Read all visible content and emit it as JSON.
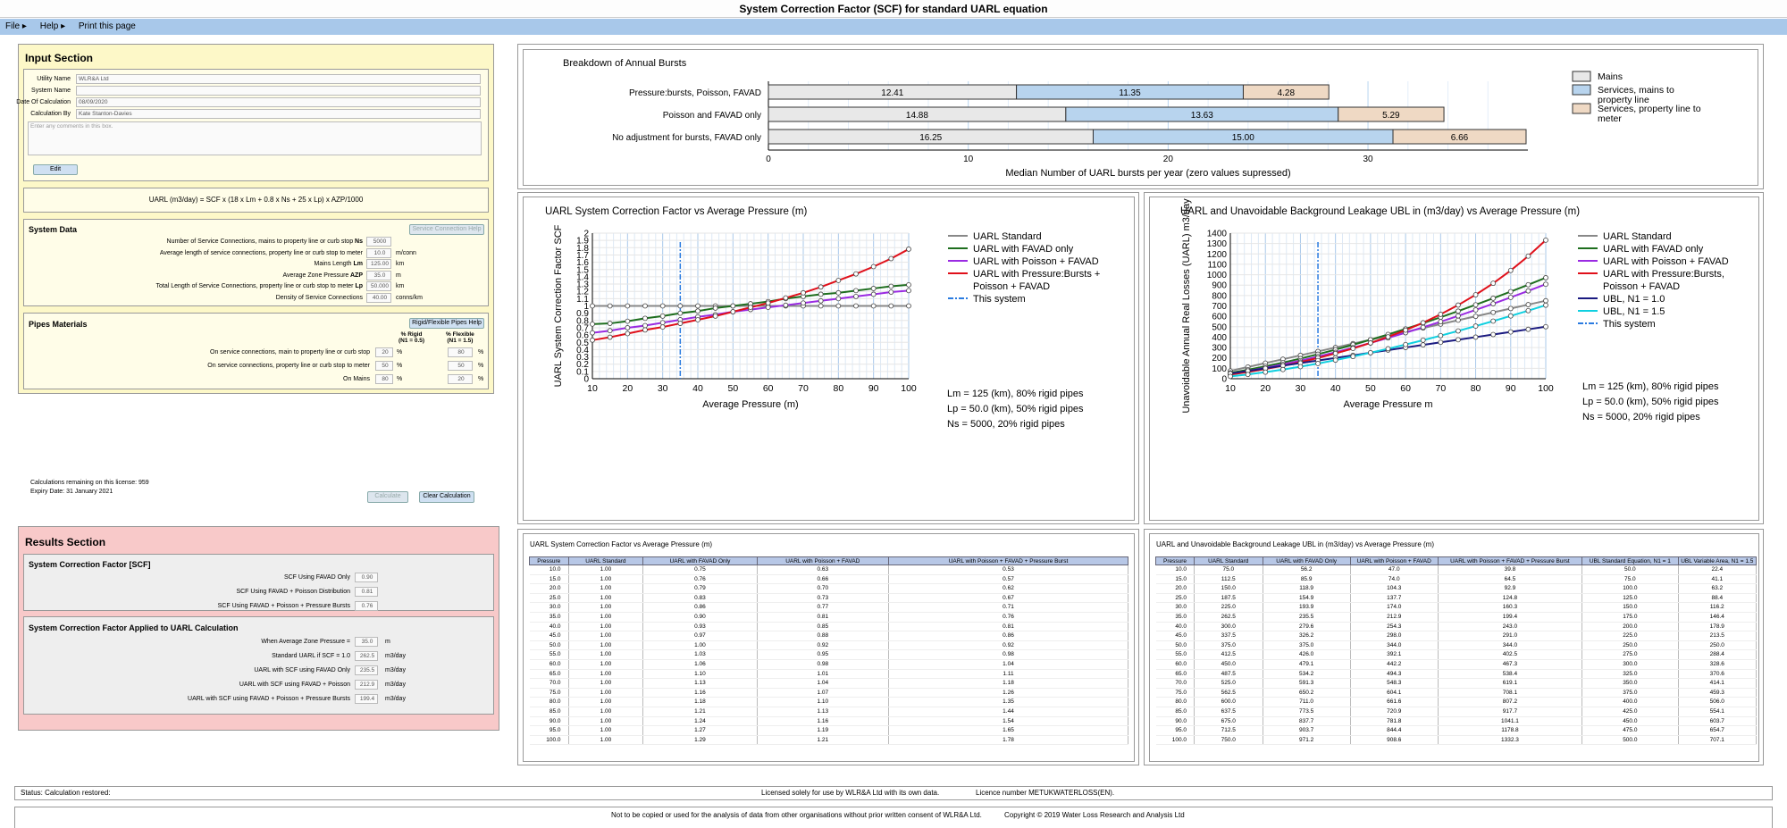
{
  "app": {
    "title": "System Correction Factor (SCF) for standard UARL equation"
  },
  "menu": {
    "file": "File",
    "help": "Help",
    "print": "Print this page"
  },
  "input": {
    "title": "Input Section",
    "utility_label": "Utility Name",
    "utility_value": "WLR&A Ltd",
    "system_label": "System Name",
    "system_value": "",
    "date_label": "Date Of Calculation",
    "date_value": "08/09/2020",
    "calcby_label": "Calculation By",
    "calcby_value": "Kate Stanton-Davies",
    "comments_placeholder": "Enter any comments in this box.",
    "edit": "Edit"
  },
  "formula": "UARL (m3/day) = SCF x (18 x Lm + 0.8 x Ns + 25 x Lp) x AZP/1000",
  "system": {
    "title": "System Data",
    "help": "Service Connection Help",
    "rows": [
      {
        "label": "Number of Service Connections, mains to property line or curb stop",
        "sym": "Ns",
        "value": "5000",
        "unit": ""
      },
      {
        "label": "Average length of service connections, property line or curb stop to meter",
        "sym": "",
        "value": "10.0",
        "unit": "m/conn"
      },
      {
        "label": "Mains Length",
        "sym": "Lm",
        "value": "125.00",
        "unit": "km"
      },
      {
        "label": "Average Zone Pressure",
        "sym": "AZP",
        "value": "35.0",
        "unit": "m"
      },
      {
        "label": "Total Length of Service Connections, property line or curb stop to meter",
        "sym": "Lp",
        "value": "50.000",
        "unit": "km"
      },
      {
        "label": "Density of Service Connections",
        "sym": "",
        "value": "40.00",
        "unit": "conns/km"
      }
    ]
  },
  "pipes": {
    "title": "Pipes Materials",
    "help": "Rigid/Flexible Pipes Help",
    "rigid_head": "% Rigid",
    "rigid_sub": "(N1 = 0.5)",
    "flex_head": "% Flexible",
    "flex_sub": "(N1 = 1.5)",
    "rows": [
      {
        "label": "On service connections, main to property line or curb stop",
        "rigid": "20",
        "flex": "80",
        "unit": "%"
      },
      {
        "label": "On service connections, property line or curb stop to meter",
        "rigid": "50",
        "flex": "50",
        "unit": "%"
      },
      {
        "label": "On Mains",
        "rigid": "80",
        "flex": "20",
        "unit": "%"
      }
    ]
  },
  "license": {
    "remaining": "Calculations remaining on this license: 959",
    "expiry": "Expiry Date: 31 January 2021",
    "calculate": "Calculate",
    "clear": "Clear Calculation"
  },
  "results": {
    "title": "Results Section",
    "scf_title": "System Correction Factor [SCF]",
    "scf_rows": [
      {
        "label": "SCF Using FAVAD Only",
        "value": "0.90"
      },
      {
        "label": "SCF Using FAVAD + Poisson Distribution",
        "value": "0.81"
      },
      {
        "label": "SCF Using FAVAD + Poisson + Pressure Bursts",
        "value": "0.76"
      }
    ],
    "applied_title": "System Correction Factor Applied to UARL Calculation",
    "applied_rows": [
      {
        "label": "When Average Zone Pressure =",
        "value": "35.0",
        "unit": "m"
      },
      {
        "label": "Standard UARL if SCF = 1.0",
        "value": "262.5",
        "unit": "m3/day"
      },
      {
        "label": "UARL with SCF using FAVAD Only",
        "value": "235.5",
        "unit": "m3/day"
      },
      {
        "label": "UARL with SCF using FAVAD + Poisson",
        "value": "212.9",
        "unit": "m3/day"
      },
      {
        "label": "UARL with SCF using FAVAD + Poisson + Pressure Bursts",
        "value": "199.4",
        "unit": "m3/day"
      }
    ]
  },
  "status": {
    "text": "Status: Calculation restored:",
    "licensed": "Licensed solely for use by WLR&A Ltd with its own data.",
    "licnum": "Licence number METUKWATERLOSS(EN).",
    "footer": "Not to be copied or used for the analysis of data from other organisations without prior written consent of WLR&A Ltd.",
    "copyright": "Copyright © 2019 Water Loss Research and Analysis Ltd"
  },
  "chart_data": [
    {
      "type": "bar",
      "title": "Breakdown of Annual Bursts",
      "xlabel": "Median Number of UARL bursts per year (zero values supressed)",
      "xlim": [
        0,
        38
      ],
      "xticks": [
        0,
        10,
        20,
        30
      ],
      "categories": [
        "Pressure:bursts, Poisson, FAVAD",
        "Poisson and FAVAD only",
        "No adjustment for bursts, FAVAD only"
      ],
      "series": [
        {
          "name": "Mains",
          "color": "#e8e8e8",
          "values": [
            12.41,
            14.88,
            16.25
          ]
        },
        {
          "name": "Services, mains to property line",
          "color": "#b8d4ee",
          "values": [
            11.35,
            13.63,
            15.0
          ]
        },
        {
          "name": "Services, property line to meter",
          "color": "#efd9c4",
          "values": [
            4.28,
            5.29,
            6.66
          ]
        }
      ],
      "legend": "right"
    },
    {
      "type": "line",
      "title": "UARL System Correction Factor vs Average Pressure (m)",
      "xlabel": "Average Pressure (m)",
      "ylabel": "UARL System Correction Factor SCF",
      "xlim": [
        10,
        100
      ],
      "ylim": [
        0,
        2
      ],
      "x": [
        10,
        15,
        20,
        25,
        30,
        35,
        40,
        45,
        50,
        55,
        60,
        65,
        70,
        75,
        80,
        85,
        90,
        95,
        100
      ],
      "series": [
        {
          "name": "UARL Standard",
          "color": "#888888",
          "values": [
            1,
            1,
            1,
            1,
            1,
            1,
            1,
            1,
            1,
            1,
            1,
            1,
            1,
            1,
            1,
            1,
            1,
            1,
            1
          ]
        },
        {
          "name": "UARL with FAVAD only",
          "color": "#1e6e1e",
          "values": [
            0.75,
            0.76,
            0.79,
            0.83,
            0.86,
            0.9,
            0.93,
            0.97,
            1.0,
            1.03,
            1.06,
            1.1,
            1.13,
            1.16,
            1.18,
            1.21,
            1.24,
            1.27,
            1.29
          ]
        },
        {
          "name": "UARL with Poisson + FAVAD",
          "color": "#9a2be2",
          "values": [
            0.63,
            0.66,
            0.7,
            0.73,
            0.77,
            0.81,
            0.85,
            0.88,
            0.92,
            0.95,
            0.98,
            1.01,
            1.04,
            1.07,
            1.1,
            1.13,
            1.16,
            1.19,
            1.21
          ]
        },
        {
          "name": "UARL with Pressure:Bursts + Poisson + FAVAD",
          "color": "#e0101a",
          "values": [
            0.53,
            0.57,
            0.62,
            0.67,
            0.71,
            0.76,
            0.81,
            0.86,
            0.92,
            0.98,
            1.04,
            1.11,
            1.18,
            1.26,
            1.35,
            1.44,
            1.54,
            1.65,
            1.78
          ]
        }
      ],
      "system_line_name": "This system",
      "system_x": 35,
      "notes": [
        "Lm = 125 (km), 80% rigid pipes",
        "Lp = 50.0 (km), 50% rigid pipes",
        "Ns = 5000, 20% rigid pipes"
      ]
    },
    {
      "type": "line",
      "title": "UARL and Unavoidable Background Leakage UBL in (m3/day) vs Average Pressure (m)",
      "xlabel": "Average Pressure m",
      "ylabel": "Unavoidable Annual Real Losses (UARL) m3/day",
      "xlim": [
        10,
        100
      ],
      "ylim": [
        0,
        1400
      ],
      "x": [
        10,
        15,
        20,
        25,
        30,
        35,
        40,
        45,
        50,
        55,
        60,
        65,
        70,
        75,
        80,
        85,
        90,
        95,
        100
      ],
      "series": [
        {
          "name": "UARL Standard",
          "color": "#888888",
          "values": [
            75.0,
            112.5,
            150.0,
            187.5,
            225.0,
            262.5,
            300.0,
            337.5,
            375.0,
            412.5,
            450.0,
            487.5,
            525.0,
            562.5,
            600.0,
            637.5,
            675.0,
            712.5,
            750.0
          ]
        },
        {
          "name": "UARL with FAVAD only",
          "color": "#1e6e1e",
          "values": [
            56.2,
            85.9,
            118.9,
            154.9,
            193.9,
            235.5,
            279.6,
            326.2,
            375.0,
            426.0,
            479.1,
            534.2,
            591.3,
            650.2,
            711.0,
            773.5,
            837.7,
            903.7,
            971.2
          ]
        },
        {
          "name": "UARL with Poisson + FAVAD",
          "color": "#9a2be2",
          "values": [
            47.0,
            74.0,
            104.3,
            137.7,
            174.0,
            212.9,
            254.3,
            298.0,
            344.0,
            392.1,
            442.2,
            494.3,
            548.3,
            604.1,
            661.6,
            720.9,
            781.8,
            844.4,
            908.6
          ]
        },
        {
          "name": "UARL with Pressure:Bursts, Poisson + FAVAD",
          "color": "#e0101a",
          "values": [
            39.8,
            64.5,
            92.9,
            124.8,
            160.3,
            199.4,
            243.0,
            291.0,
            344.0,
            402.5,
            467.3,
            538.4,
            619.1,
            708.1,
            807.2,
            917.7,
            1041.1,
            1178.8,
            1332.3
          ]
        },
        {
          "name": "UBL, N1 = 1.0",
          "color": "#1a1a80",
          "values": [
            50.0,
            75.0,
            100.0,
            125.0,
            150.0,
            175.0,
            200.0,
            225.0,
            250.0,
            275.0,
            300.0,
            325.0,
            350.0,
            375.0,
            400.0,
            425.0,
            450.0,
            475.0,
            500.0
          ]
        },
        {
          "name": "UBL, N1 = 1.5",
          "color": "#10d0e0",
          "values": [
            22.4,
            41.1,
            63.2,
            88.4,
            116.2,
            146.4,
            178.9,
            213.5,
            250.0,
            288.4,
            328.6,
            370.6,
            414.1,
            459.3,
            506.0,
            554.1,
            603.7,
            654.7,
            707.1
          ]
        }
      ],
      "system_line_name": "This system",
      "system_x": 35,
      "notes": [
        "Lm = 125 (km), 80% rigid pipes",
        "Lp = 50.0 (km), 50% rigid pipes",
        "Ns = 5000, 20% rigid pipes"
      ]
    }
  ],
  "table1": {
    "title": "UARL System Correction Factor vs Average Pressure (m)",
    "headers": [
      "Pressure",
      "UARL Standard",
      "UARL with FAVAD Only",
      "UARL with Poisson + FAVAD",
      "UARL with Poisson + FAVAD + Pressure Burst"
    ],
    "rows": [
      [
        "10.0",
        "1.00",
        "0.75",
        "0.63",
        "0.53"
      ],
      [
        "15.0",
        "1.00",
        "0.76",
        "0.66",
        "0.57"
      ],
      [
        "20.0",
        "1.00",
        "0.79",
        "0.70",
        "0.62"
      ],
      [
        "25.0",
        "1.00",
        "0.83",
        "0.73",
        "0.67"
      ],
      [
        "30.0",
        "1.00",
        "0.86",
        "0.77",
        "0.71"
      ],
      [
        "35.0",
        "1.00",
        "0.90",
        "0.81",
        "0.76"
      ],
      [
        "40.0",
        "1.00",
        "0.93",
        "0.85",
        "0.81"
      ],
      [
        "45.0",
        "1.00",
        "0.97",
        "0.88",
        "0.86"
      ],
      [
        "50.0",
        "1.00",
        "1.00",
        "0.92",
        "0.92"
      ],
      [
        "55.0",
        "1.00",
        "1.03",
        "0.95",
        "0.98"
      ],
      [
        "60.0",
        "1.00",
        "1.06",
        "0.98",
        "1.04"
      ],
      [
        "65.0",
        "1.00",
        "1.10",
        "1.01",
        "1.11"
      ],
      [
        "70.0",
        "1.00",
        "1.13",
        "1.04",
        "1.18"
      ],
      [
        "75.0",
        "1.00",
        "1.16",
        "1.07",
        "1.26"
      ],
      [
        "80.0",
        "1.00",
        "1.18",
        "1.10",
        "1.35"
      ],
      [
        "85.0",
        "1.00",
        "1.21",
        "1.13",
        "1.44"
      ],
      [
        "90.0",
        "1.00",
        "1.24",
        "1.16",
        "1.54"
      ],
      [
        "95.0",
        "1.00",
        "1.27",
        "1.19",
        "1.65"
      ],
      [
        "100.0",
        "1.00",
        "1.29",
        "1.21",
        "1.78"
      ]
    ]
  },
  "table2": {
    "title": "UARL and Unavoidable Background Leakage UBL in (m3/day) vs Average Pressure (m)",
    "headers": [
      "Pressure",
      "UARL Standard",
      "UARL with FAVAD Only",
      "UARL with Poisson + FAVAD",
      "UARL with Poisson + FAVAD + Pressure Burst",
      "UBL Standard Equation, N1 = 1",
      "UBL Variable Area, N1 = 1.5"
    ],
    "rows": [
      [
        "10.0",
        "75.0",
        "56.2",
        "47.0",
        "39.8",
        "50.0",
        "22.4"
      ],
      [
        "15.0",
        "112.5",
        "85.9",
        "74.0",
        "64.5",
        "75.0",
        "41.1"
      ],
      [
        "20.0",
        "150.0",
        "118.9",
        "104.3",
        "92.9",
        "100.0",
        "63.2"
      ],
      [
        "25.0",
        "187.5",
        "154.9",
        "137.7",
        "124.8",
        "125.0",
        "88.4"
      ],
      [
        "30.0",
        "225.0",
        "193.9",
        "174.0",
        "160.3",
        "150.0",
        "116.2"
      ],
      [
        "35.0",
        "262.5",
        "235.5",
        "212.9",
        "199.4",
        "175.0",
        "146.4"
      ],
      [
        "40.0",
        "300.0",
        "279.6",
        "254.3",
        "243.0",
        "200.0",
        "178.9"
      ],
      [
        "45.0",
        "337.5",
        "326.2",
        "298.0",
        "291.0",
        "225.0",
        "213.5"
      ],
      [
        "50.0",
        "375.0",
        "375.0",
        "344.0",
        "344.0",
        "250.0",
        "250.0"
      ],
      [
        "55.0",
        "412.5",
        "426.0",
        "392.1",
        "402.5",
        "275.0",
        "288.4"
      ],
      [
        "60.0",
        "450.0",
        "479.1",
        "442.2",
        "467.3",
        "300.0",
        "328.6"
      ],
      [
        "65.0",
        "487.5",
        "534.2",
        "494.3",
        "538.4",
        "325.0",
        "370.6"
      ],
      [
        "70.0",
        "525.0",
        "591.3",
        "548.3",
        "619.1",
        "350.0",
        "414.1"
      ],
      [
        "75.0",
        "562.5",
        "650.2",
        "604.1",
        "708.1",
        "375.0",
        "459.3"
      ],
      [
        "80.0",
        "600.0",
        "711.0",
        "661.6",
        "807.2",
        "400.0",
        "506.0"
      ],
      [
        "85.0",
        "637.5",
        "773.5",
        "720.9",
        "917.7",
        "425.0",
        "554.1"
      ],
      [
        "90.0",
        "675.0",
        "837.7",
        "781.8",
        "1041.1",
        "450.0",
        "603.7"
      ],
      [
        "95.0",
        "712.5",
        "903.7",
        "844.4",
        "1178.8",
        "475.0",
        "654.7"
      ],
      [
        "100.0",
        "750.0",
        "971.2",
        "908.6",
        "1332.3",
        "500.0",
        "707.1"
      ]
    ]
  }
}
